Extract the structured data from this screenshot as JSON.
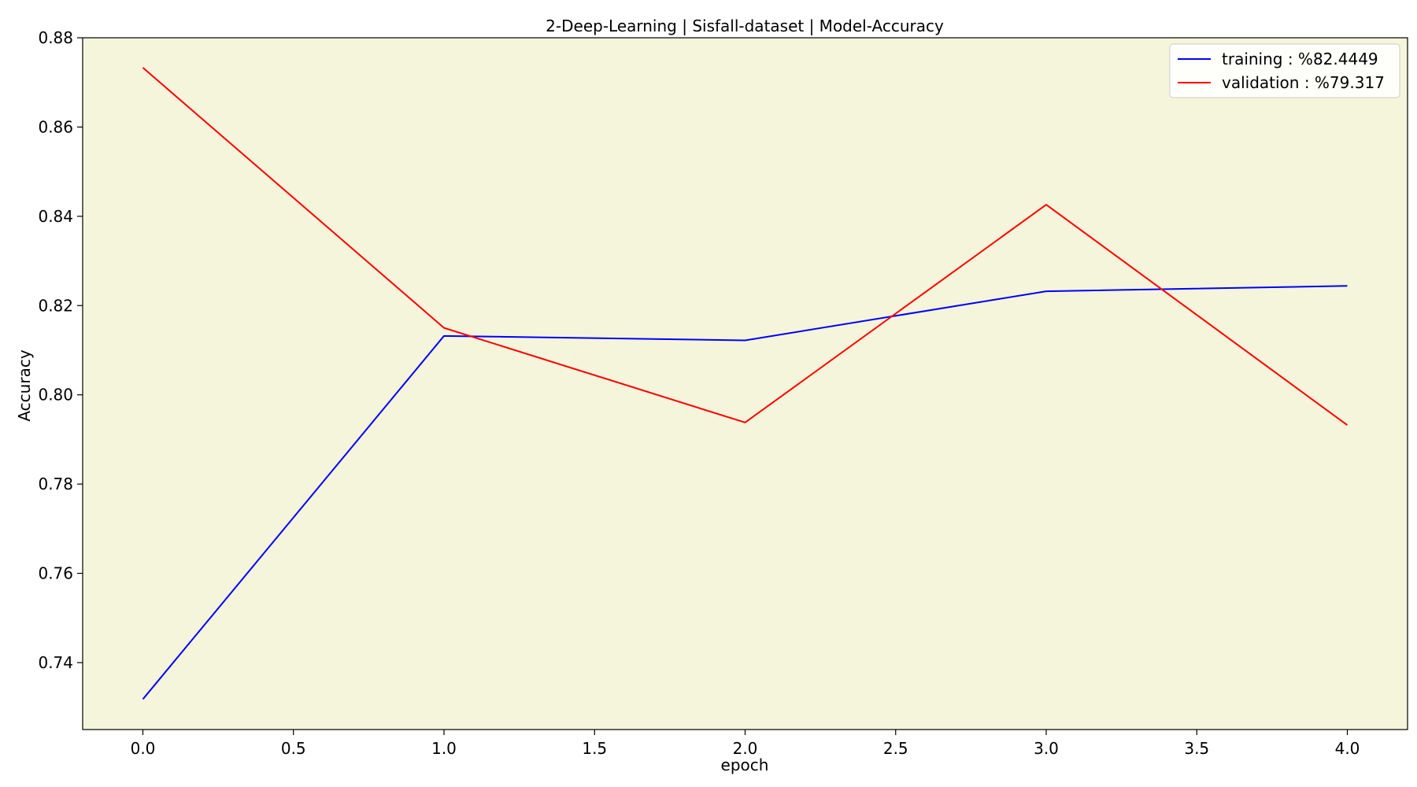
{
  "chart_data": {
    "type": "line",
    "title": "2-Deep-Learning | Sisfall-dataset  | Model-Accuracy",
    "xlabel": "epoch",
    "ylabel": "Accuracy",
    "x": [
      0,
      1,
      2,
      3,
      4
    ],
    "xlim": [
      -0.2,
      4.2
    ],
    "ylim": [
      0.725,
      0.88
    ],
    "xticks": [
      "0.0",
      "0.5",
      "1.0",
      "1.5",
      "2.0",
      "2.5",
      "3.0",
      "3.5",
      "4.0"
    ],
    "yticks": [
      "0.74",
      "0.76",
      "0.78",
      "0.80",
      "0.82",
      "0.84",
      "0.86",
      "0.88"
    ],
    "grid": false,
    "legend_position": "top-right",
    "plot_background": "#f5f5dc",
    "series": [
      {
        "name": "training  : %82.4449",
        "color": "#0000ff",
        "values": [
          0.7318,
          0.8132,
          0.8122,
          0.8232,
          0.8244
        ]
      },
      {
        "name": "validation : %79.317",
        "color": "#ff0000",
        "values": [
          0.8733,
          0.815,
          0.7938,
          0.8426,
          0.7932
        ]
      }
    ]
  }
}
